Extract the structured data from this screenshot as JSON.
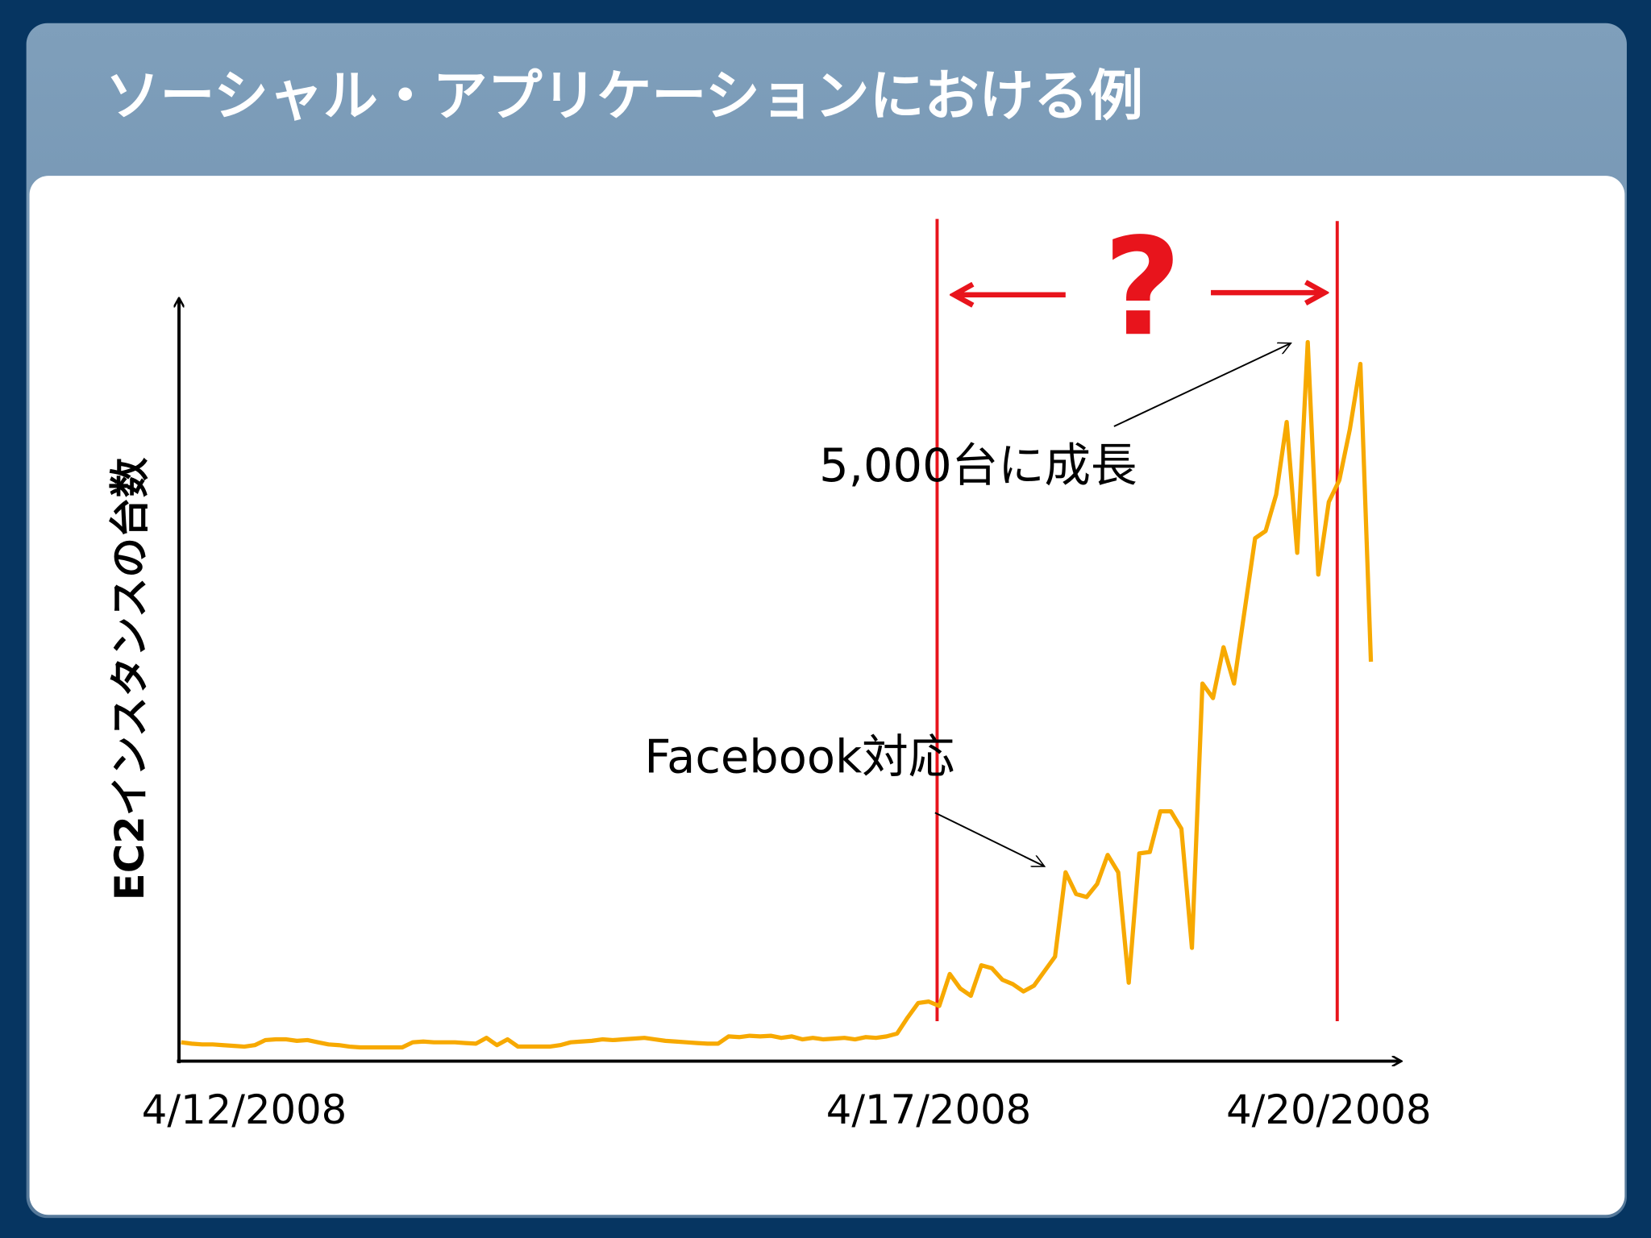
{
  "chart_data": {
    "type": "line",
    "title": "ソーシャル・アプリケーションにおける例",
    "y_label": "EC2インスタンスの台数",
    "annotations": [
      "5,000台に成長",
      "Facebook対応",
      "?"
    ],
    "categories": [
      null,
      null,
      null,
      null,
      null,
      null,
      "4/12/2008",
      null,
      null,
      null,
      null,
      null,
      null,
      null,
      null,
      null,
      null,
      null,
      null,
      null,
      null,
      null,
      null,
      null,
      null,
      null,
      null,
      null,
      null,
      null,
      null,
      null,
      null,
      null,
      null,
      null,
      null,
      null,
      null,
      null,
      null,
      null,
      null,
      null,
      null,
      null,
      null,
      null,
      null,
      null,
      null,
      null,
      null,
      null,
      null,
      null,
      null,
      null,
      null,
      null,
      null,
      null,
      null,
      null,
      null,
      null,
      null,
      null,
      null,
      null,
      null,
      "4/17/2008",
      null,
      null,
      null,
      null,
      null,
      null,
      null,
      null,
      null,
      null,
      null,
      null,
      null,
      null,
      null,
      null,
      null,
      null,
      null,
      null,
      null,
      null,
      null,
      null,
      null,
      null,
      null,
      null,
      null,
      null,
      null,
      null,
      null,
      null,
      null,
      null,
      null,
      "4/20/2008",
      null,
      null,
      null,
      null
    ],
    "series": [
      {
        "name": null,
        "color": "#f7a900",
        "values": [
          130,
          120,
          115,
          115,
          110,
          105,
          100,
          110,
          145,
          150,
          150,
          140,
          145,
          130,
          115,
          110,
          100,
          95,
          95,
          95,
          95,
          95,
          130,
          135,
          130,
          130,
          130,
          125,
          120,
          160,
          110,
          150,
          100,
          100,
          100,
          100,
          110,
          130,
          135,
          140,
          150,
          145,
          150,
          155,
          160,
          150,
          140,
          135,
          130,
          125,
          120,
          120,
          170,
          165,
          175,
          170,
          175,
          160,
          170,
          150,
          160,
          150,
          155,
          160,
          150,
          165,
          160,
          170,
          190,
          300,
          400,
          410,
          380,
          600,
          500,
          450,
          660,
          640,
          560,
          530,
          480,
          520,
          620,
          720,
          1300,
          1150,
          1130,
          1220,
          1420,
          1300,
          540,
          1430,
          1440,
          1720,
          1720,
          1600,
          780,
          2600,
          2500,
          2850,
          2600,
          3100,
          3600,
          3650,
          3900,
          4400,
          3500,
          4950,
          3350,
          3850,
          4000,
          4350,
          4800,
          2750
        ]
      }
    ],
    "ylim": [
      0,
      5240
    ]
  }
}
